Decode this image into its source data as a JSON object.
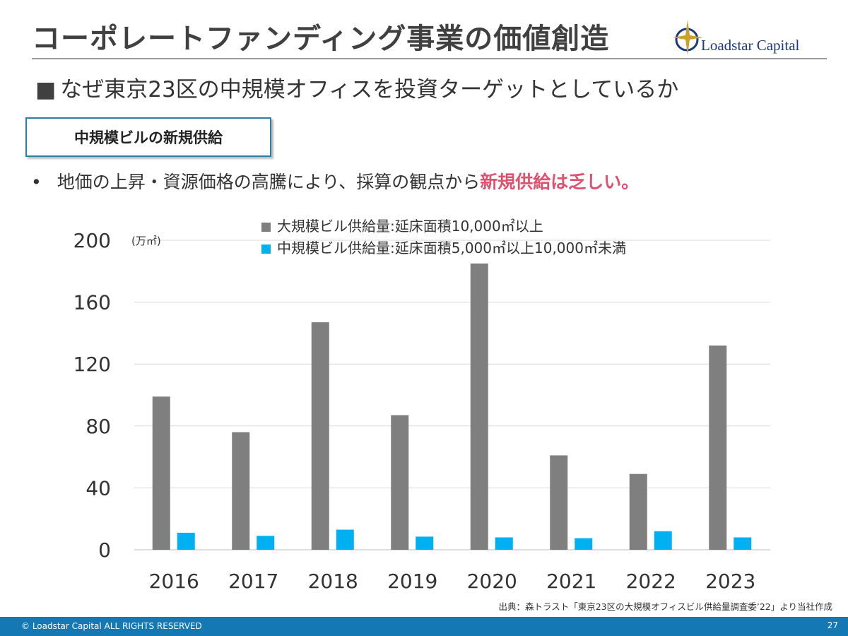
{
  "header": {
    "title": "コーポレートファンディング事業の価値創造",
    "logo_text": "Loadstar Capital"
  },
  "subtitle": {
    "marker": "■",
    "text": "なぜ東京23区の中規模オフィスを投資ターゲットとしているか"
  },
  "section_label": "中規模ビルの新規供給",
  "bullet": {
    "marker": "•",
    "text": "地価の上昇・資源価格の高騰により、採算の観点から",
    "highlight": "新規供給は乏しい。"
  },
  "source_note": "出典：森トラスト「東京23区の大規模オフィスビル供給量調査委’22」より当社作成",
  "footer": {
    "copyright": "© Loadstar Capital ALL RIGHTS RESERVED",
    "page_number": "27"
  },
  "colors": {
    "large": "#7f7f7f",
    "medium": "#00b0f0",
    "highlight": "#e0506f",
    "footer": "#1478b4"
  },
  "chart_data": {
    "type": "bar",
    "title": "",
    "ylabel": "(万㎡)",
    "xlabel": "",
    "ylim": [
      0,
      200
    ],
    "yticks": [
      0,
      40,
      80,
      120,
      160,
      200
    ],
    "categories": [
      "2016",
      "2017",
      "2018",
      "2019",
      "2020",
      "2021",
      "2022",
      "2023"
    ],
    "legend_position": "top",
    "series": [
      {
        "name": "大規模ビル供給量:延床面積10,000㎡以上",
        "values": [
          99,
          76,
          147,
          87,
          185,
          61,
          49,
          132
        ]
      },
      {
        "name": "中規模ビル供給量:延床面積5,000㎡以上10,000㎡未満",
        "values": [
          11,
          9,
          13,
          8.5,
          8,
          7.5,
          12,
          8
        ]
      }
    ]
  }
}
